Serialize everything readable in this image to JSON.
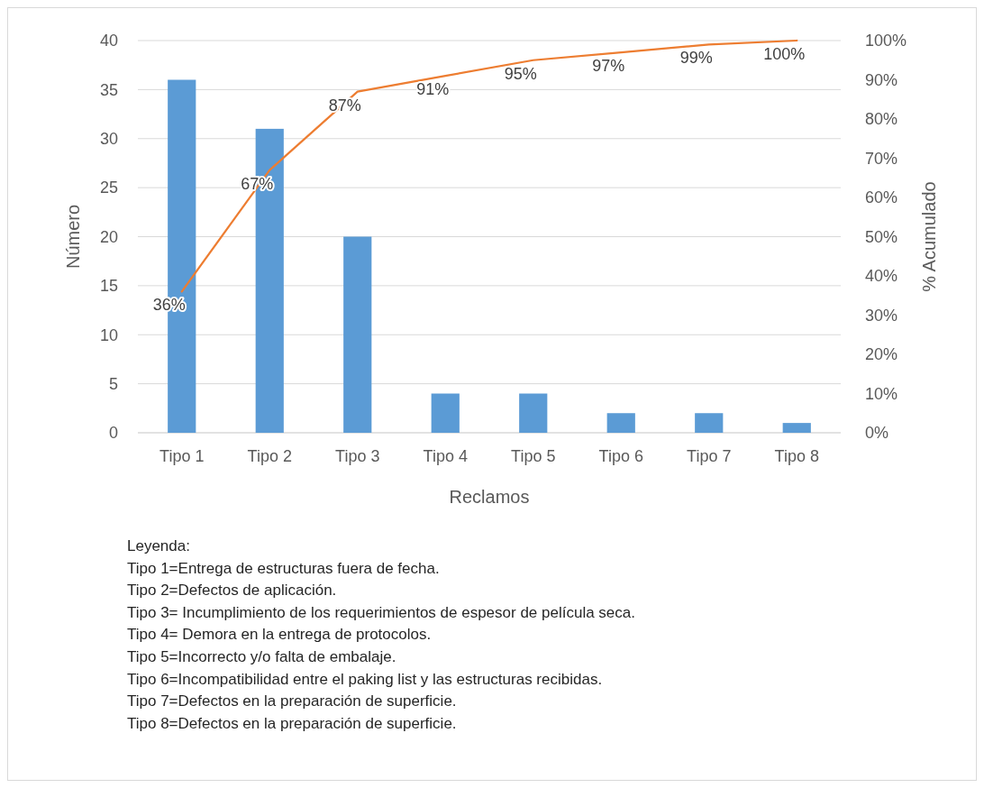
{
  "chart_data": {
    "type": "bar",
    "xlabel": "Reclamos",
    "ylabel": "Número",
    "y2label": "% Acumulado",
    "categories": [
      "Tipo 1",
      "Tipo 2",
      "Tipo 3",
      "Tipo 4",
      "Tipo 5",
      "Tipo 6",
      "Tipo 7",
      "Tipo 8"
    ],
    "series": [
      {
        "color": "#5b9bd5",
        "values": [
          36,
          31,
          20,
          4,
          4,
          2,
          2,
          1
        ]
      },
      {
        "type": "line",
        "axis": "y2",
        "color": "#ed7d31",
        "values": [
          36,
          67,
          87,
          91,
          95,
          97,
          99,
          100
        ],
        "value_labels": [
          "36%",
          "67%",
          "87%",
          "91%",
          "95%",
          "97%",
          "99%",
          "100%"
        ]
      }
    ],
    "ylim": [
      0,
      40
    ],
    "yticks": [
      0,
      5,
      10,
      15,
      20,
      25,
      30,
      35,
      40
    ],
    "y2lim": [
      0,
      100
    ],
    "y2ticks": [
      {
        "value": 0,
        "label": "0%"
      },
      {
        "value": 10,
        "label": "10%"
      },
      {
        "value": 20,
        "label": "20%"
      },
      {
        "value": 30,
        "label": "30%"
      },
      {
        "value": 40,
        "label": "40%"
      },
      {
        "value": 50,
        "label": "50%"
      },
      {
        "value": 60,
        "label": "60%"
      },
      {
        "value": 70,
        "label": "70%"
      },
      {
        "value": 80,
        "label": "80%"
      },
      {
        "value": 90,
        "label": "90%"
      },
      {
        "value": 100,
        "label": "100%"
      }
    ],
    "grid": "y",
    "marker": "none",
    "annotations": [
      "Leyenda:",
      "Tipo 1=Entrega de estructuras fuera de fecha.",
      "Tipo 2=Defectos de aplicación.",
      "Tipo 3= Incumplimiento de los requerimientos de espesor de película seca.",
      "Tipo 4= Demora en la entrega de protocolos.",
      "Tipo 5=Incorrecto y/o falta de embalaje.",
      "Tipo 6=Incompatibilidad entre el paking list y las estructuras recibidas.",
      "Tipo 7=Defectos en la preparación de superficie.",
      "Tipo 8=Defectos en la preparación de superficie."
    ]
  }
}
